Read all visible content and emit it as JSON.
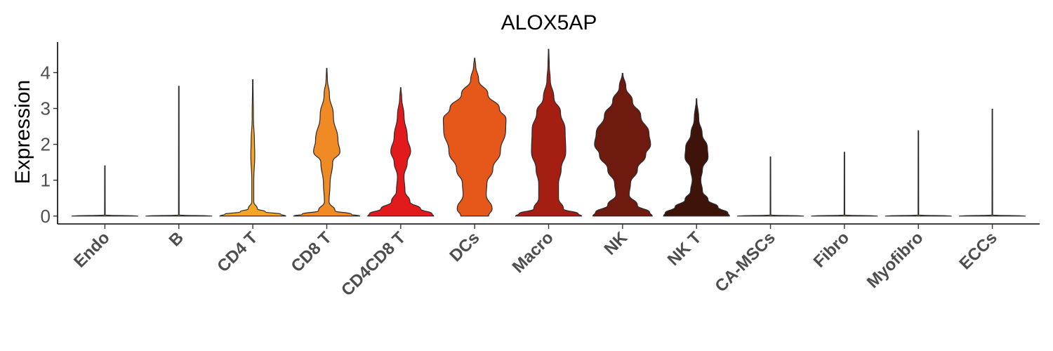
{
  "chart_data": {
    "type": "violin",
    "title": "ALOX5AP",
    "ylabel": "Expression",
    "xlabel": "",
    "ylim": [
      -0.22,
      4.85
    ],
    "yticks": [
      "0",
      "1",
      "2",
      "3",
      "4"
    ],
    "legend": "none",
    "grid": false,
    "categories": [
      "Endo",
      "B",
      "CD4 T",
      "CD8 T",
      "CD4CD8 T",
      "DCs",
      "Macro",
      "NK",
      "NK T",
      "CA-MSCs",
      "Fibro",
      "Myofibro",
      "ECCs"
    ],
    "colors": [
      "#f6a623",
      "#f6a623",
      "#f5a526",
      "#f08a24",
      "#e31a1c",
      "#e6581a",
      "#a51e12",
      "#6e1a0e",
      "#3e1309",
      "#f6a623",
      "#f6a623",
      "#f6a623",
      "#f6a623"
    ],
    "violins": [
      {
        "name": "Endo",
        "max": 1.4,
        "profile": [
          [
            0,
            1
          ],
          [
            0.03,
            0.01
          ],
          [
            1.4,
            0.006
          ]
        ]
      },
      {
        "name": "B",
        "max": 3.62,
        "profile": [
          [
            0,
            1
          ],
          [
            0.03,
            0.01
          ],
          [
            3.62,
            0.006
          ]
        ]
      },
      {
        "name": "CD4 T",
        "max": 3.8,
        "profile": [
          [
            0,
            1
          ],
          [
            0.05,
            0.85
          ],
          [
            0.12,
            0.38
          ],
          [
            0.2,
            0.14
          ],
          [
            0.4,
            0.03
          ],
          [
            1.0,
            0.03
          ],
          [
            1.7,
            0.06
          ],
          [
            2.1,
            0.05
          ],
          [
            2.7,
            0.02
          ],
          [
            3.8,
            0.005
          ]
        ]
      },
      {
        "name": "CD8 T",
        "max": 4.12,
        "profile": [
          [
            0,
            1
          ],
          [
            0.05,
            0.75
          ],
          [
            0.15,
            0.25
          ],
          [
            0.4,
            0.07
          ],
          [
            0.9,
            0.1
          ],
          [
            1.5,
            0.18
          ],
          [
            1.8,
            0.4
          ],
          [
            2.1,
            0.34
          ],
          [
            2.8,
            0.2
          ],
          [
            3.4,
            0.08
          ],
          [
            3.8,
            0.02
          ],
          [
            4.12,
            0.004
          ]
        ]
      },
      {
        "name": "CD4CD8 T",
        "max": 3.58,
        "profile": [
          [
            0,
            1
          ],
          [
            0.06,
            0.95
          ],
          [
            0.2,
            0.6
          ],
          [
            0.4,
            0.28
          ],
          [
            0.7,
            0.13
          ],
          [
            1.1,
            0.1
          ],
          [
            1.5,
            0.2
          ],
          [
            1.8,
            0.3
          ],
          [
            2.2,
            0.2
          ],
          [
            2.8,
            0.1
          ],
          [
            3.3,
            0.03
          ],
          [
            3.58,
            0.004
          ]
        ]
      },
      {
        "name": "DCs",
        "max": 4.4,
        "profile": [
          [
            0,
            0.42
          ],
          [
            0.2,
            0.53
          ],
          [
            0.6,
            0.35
          ],
          [
            0.9,
            0.37
          ],
          [
            1.3,
            0.55
          ],
          [
            1.8,
            0.78
          ],
          [
            2.4,
            0.94
          ],
          [
            2.7,
            0.95
          ],
          [
            3.0,
            0.75
          ],
          [
            3.4,
            0.4
          ],
          [
            3.8,
            0.12
          ],
          [
            4.2,
            0.03
          ],
          [
            4.4,
            0.005
          ]
        ]
      },
      {
        "name": "Macro",
        "max": 4.65,
        "profile": [
          [
            0,
            1
          ],
          [
            0.06,
            0.9
          ],
          [
            0.2,
            0.45
          ],
          [
            0.5,
            0.3
          ],
          [
            0.9,
            0.3
          ],
          [
            1.3,
            0.38
          ],
          [
            1.8,
            0.52
          ],
          [
            2.4,
            0.5
          ],
          [
            2.9,
            0.36
          ],
          [
            3.3,
            0.16
          ],
          [
            3.8,
            0.05
          ],
          [
            4.2,
            0.02
          ],
          [
            4.65,
            0.004
          ]
        ]
      },
      {
        "name": "NK",
        "max": 3.98,
        "profile": [
          [
            0,
            0.9
          ],
          [
            0.1,
            0.82
          ],
          [
            0.3,
            0.45
          ],
          [
            0.6,
            0.2
          ],
          [
            0.9,
            0.24
          ],
          [
            1.3,
            0.45
          ],
          [
            1.7,
            0.7
          ],
          [
            2.0,
            0.85
          ],
          [
            2.3,
            0.8
          ],
          [
            2.8,
            0.55
          ],
          [
            3.2,
            0.3
          ],
          [
            3.6,
            0.1
          ],
          [
            3.98,
            0.01
          ]
        ]
      },
      {
        "name": "NK T",
        "max": 3.27,
        "profile": [
          [
            0,
            1
          ],
          [
            0.08,
            0.95
          ],
          [
            0.25,
            0.65
          ],
          [
            0.45,
            0.35
          ],
          [
            0.7,
            0.18
          ],
          [
            1.0,
            0.13
          ],
          [
            1.3,
            0.18
          ],
          [
            1.65,
            0.35
          ],
          [
            1.9,
            0.33
          ],
          [
            2.3,
            0.17
          ],
          [
            2.7,
            0.07
          ],
          [
            3.27,
            0.005
          ]
        ]
      },
      {
        "name": "CA-MSCs",
        "max": 1.65,
        "profile": [
          [
            0,
            1
          ],
          [
            0.03,
            0.01
          ],
          [
            1.65,
            0.006
          ]
        ]
      },
      {
        "name": "Fibro",
        "max": 1.78,
        "profile": [
          [
            0,
            1
          ],
          [
            0.03,
            0.01
          ],
          [
            1.78,
            0.006
          ]
        ]
      },
      {
        "name": "Myofibro",
        "max": 2.38,
        "profile": [
          [
            0,
            1
          ],
          [
            0.03,
            0.01
          ],
          [
            2.38,
            0.006
          ]
        ]
      },
      {
        "name": "ECCs",
        "max": 2.98,
        "profile": [
          [
            0,
            1
          ],
          [
            0.03,
            0.01
          ],
          [
            2.98,
            0.006
          ]
        ]
      }
    ]
  }
}
